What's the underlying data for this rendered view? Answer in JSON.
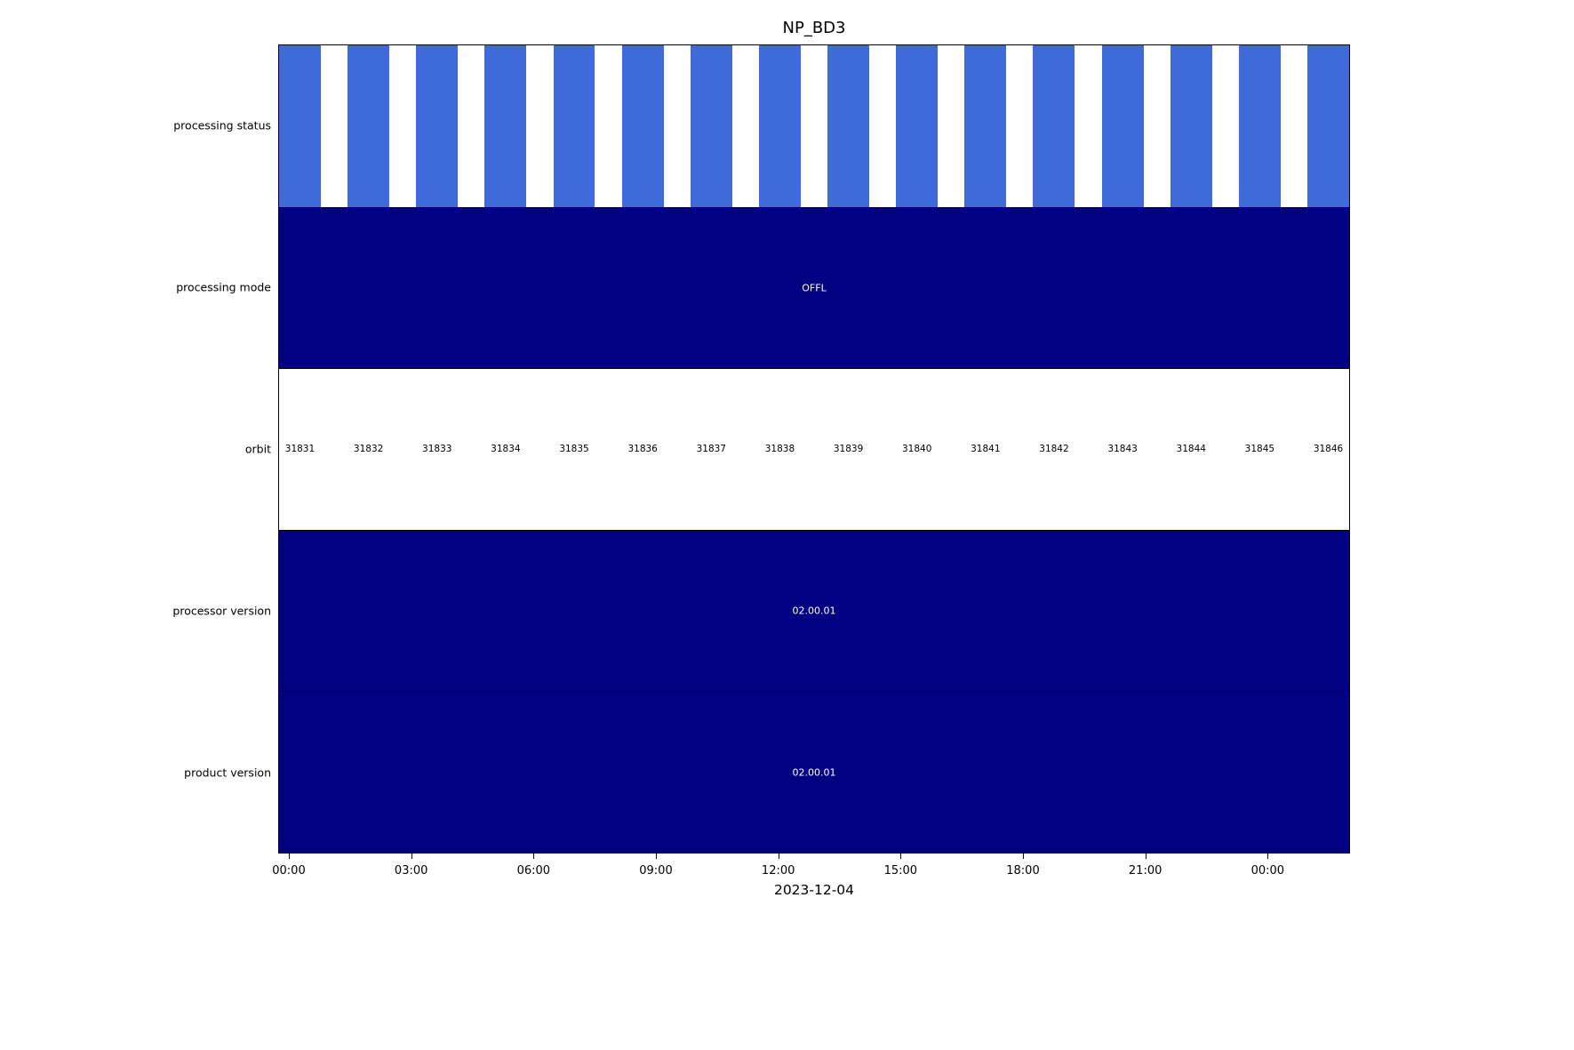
{
  "chart_data": {
    "type": "bar",
    "title": "NP_BD3",
    "xlabel": "2023-12-04",
    "x_ticks": [
      "00:00",
      "03:00",
      "06:00",
      "09:00",
      "12:00",
      "15:00",
      "18:00",
      "21:00",
      "00:00"
    ],
    "orbits": [
      31831,
      31832,
      31833,
      31834,
      31835,
      31836,
      31837,
      31838,
      31839,
      31840,
      31841,
      31842,
      31843,
      31844,
      31845,
      31846
    ],
    "rows": [
      {
        "label": "processing status",
        "kind": "per_orbit_bars",
        "bar_color": "#3E6BD9"
      },
      {
        "label": "processing mode",
        "value": "OFFL",
        "band_color": "#000080",
        "text_color": "#ffffff"
      },
      {
        "label": "orbit",
        "kind": "orbit_numbers",
        "band_color": "#ffffff",
        "text_color": "#000000"
      },
      {
        "label": "processor version",
        "value": "02.00.01",
        "band_color": "#000080",
        "text_color": "#ffffff"
      },
      {
        "label": "product version",
        "value": "02.00.01",
        "band_color": "#000080",
        "text_color": "#ffffff"
      }
    ],
    "layout": {
      "legend": false,
      "grid": false,
      "x_range_note": "axis starts 2023-12-04 00:00 and extends ~2h past midnight into 2023-12-05",
      "orbit_bar_fill_fraction": 0.62
    }
  }
}
